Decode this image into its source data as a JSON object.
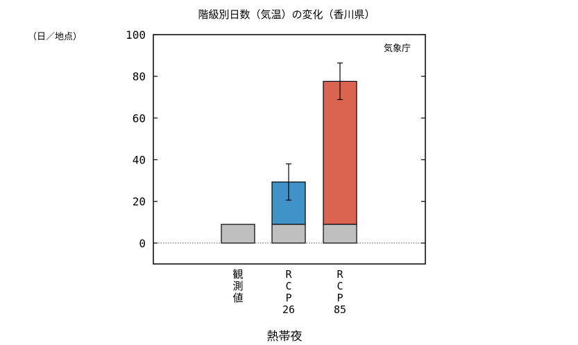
{
  "chart_data": {
    "type": "bar",
    "title": "階級別日数（気温）の変化（香川県）",
    "unit_label": "（日／地点）",
    "source_label": "気象庁",
    "xlabel": "熱帯夜",
    "ylabel": "",
    "ylim": [
      -10,
      100
    ],
    "yticks": [
      0,
      20,
      40,
      60,
      80,
      100
    ],
    "grid": false,
    "zero_line": "dotted",
    "categories": [
      {
        "label_lines": [
          "観",
          "測",
          "値"
        ]
      },
      {
        "label_lines": [
          "R",
          "C",
          "P",
          "26"
        ]
      },
      {
        "label_lines": [
          "R",
          "C",
          "P",
          "85"
        ]
      }
    ],
    "bars": [
      {
        "base": 9.0,
        "total": 9.0,
        "error": null,
        "base_color": "#bfbfbf",
        "increase_color": null
      },
      {
        "base": 9.0,
        "total": 29.3,
        "error": [
          20.6,
          38.0
        ],
        "base_color": "#bfbfbf",
        "increase_color": "#3f93c6"
      },
      {
        "base": 9.0,
        "total": 77.6,
        "error": [
          68.9,
          86.4
        ],
        "base_color": "#bfbfbf",
        "increase_color": "#db6450"
      }
    ]
  }
}
